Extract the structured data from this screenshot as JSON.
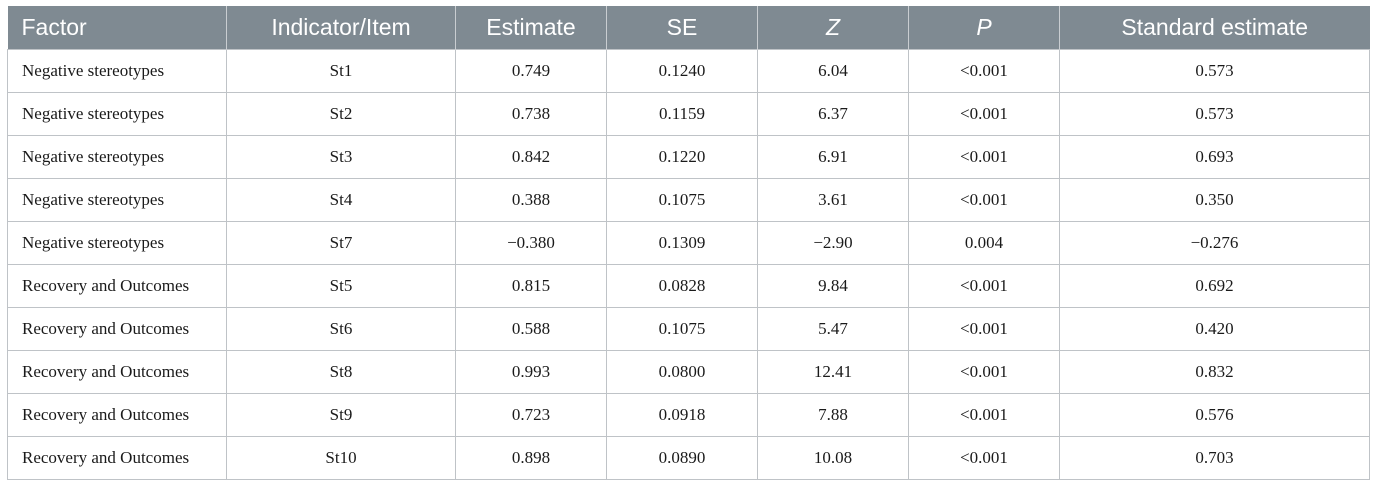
{
  "table": {
    "headers": [
      "Factor",
      "Indicator/Item",
      "Estimate",
      "SE",
      "Z",
      "P",
      "Standard estimate"
    ],
    "rows": [
      [
        "Negative stereotypes",
        "St1",
        "0.749",
        "0.1240",
        "6.04",
        "<0.001",
        "0.573"
      ],
      [
        "Negative stereotypes",
        "St2",
        "0.738",
        "0.1159",
        "6.37",
        "<0.001",
        "0.573"
      ],
      [
        "Negative stereotypes",
        "St3",
        "0.842",
        "0.1220",
        "6.91",
        "<0.001",
        "0.693"
      ],
      [
        "Negative stereotypes",
        "St4",
        "0.388",
        "0.1075",
        "3.61",
        "<0.001",
        "0.350"
      ],
      [
        "Negative stereotypes",
        "St7",
        "−0.380",
        "0.1309",
        "−2.90",
        "0.004",
        "−0.276"
      ],
      [
        "Recovery and Outcomes",
        "St5",
        "0.815",
        "0.0828",
        "9.84",
        "<0.001",
        "0.692"
      ],
      [
        "Recovery and Outcomes",
        "St6",
        "0.588",
        "0.1075",
        "5.47",
        "<0.001",
        "0.420"
      ],
      [
        "Recovery and Outcomes",
        "St8",
        "0.993",
        "0.0800",
        "12.41",
        "<0.001",
        "0.832"
      ],
      [
        "Recovery and Outcomes",
        "St9",
        "0.723",
        "0.0918",
        "7.88",
        "<0.001",
        "0.576"
      ],
      [
        "Recovery and Outcomes",
        "St10",
        "0.898",
        "0.0890",
        "10.08",
        "<0.001",
        "0.703"
      ]
    ],
    "colors": {
      "header_bg": "#7f8a92",
      "header_text": "#ffffff",
      "grid": "#bfc3c7"
    }
  }
}
